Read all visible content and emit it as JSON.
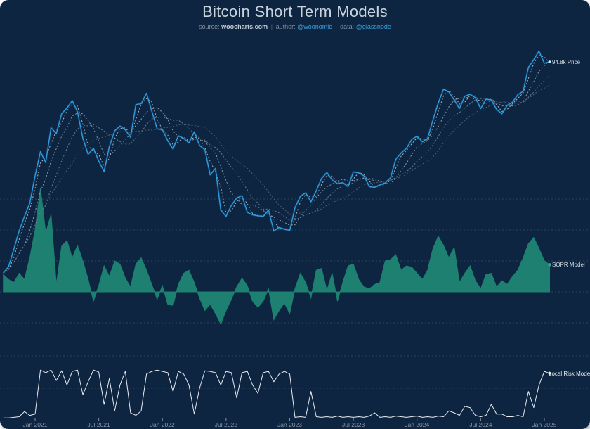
{
  "header": {
    "title": "Bitcoin Short Term Models",
    "subtitle": {
      "source_label": "source:",
      "source_value": "woocharts.com",
      "divider": "|",
      "author_label": "author:",
      "author_value": "@woonomic",
      "data_label": "data:",
      "data_value": "@glassnode"
    }
  },
  "series_labels": {
    "price": "94.8k Price",
    "sopr": "SOPR Model",
    "risk": "Local Risk Model"
  },
  "colors": {
    "background": "#0d2541",
    "price_line": "#30a0e2",
    "price_glow": "#1e6da6",
    "ma_lines": [
      "#e4eaf0",
      "#b9c3cd",
      "#8e9aa8",
      "#66758a"
    ],
    "sopr_area": "#1d8070",
    "sopr_dot": "#2fae8e",
    "risk_line": "#e9edf1",
    "gridline": "rgba(255,255,255,0.18)",
    "axis_text": "#8b98a7",
    "link": "#3aa0da"
  },
  "chart_data": {
    "type": "line",
    "title": "Bitcoin Short Term Models",
    "x_axis": {
      "tick_labels": [
        "Jan 2021",
        "Jul 2021",
        "Jan 2022",
        "Jul 2022",
        "Jan 2023",
        "Jul 2023",
        "Jan 2024",
        "Jul 2024",
        "Jan 2025"
      ],
      "tick_months": [
        0,
        6,
        12,
        18,
        24,
        30,
        36,
        42,
        48
      ]
    },
    "t_start": -3,
    "t_step": 0.5,
    "panels": [
      {
        "name": "btc_price_usd_thousands",
        "type": "line",
        "scale": "log",
        "label": "94.8k Price",
        "last_value": 94.8,
        "ma_windows_samples": [
          2,
          5,
          9,
          14
        ],
        "values": [
          10.7,
          11.4,
          13.7,
          16.5,
          19.2,
          22.0,
          29.2,
          37.5,
          33.5,
          48.0,
          45.2,
          55.5,
          58.8,
          63.5,
          56.5,
          43.0,
          36.5,
          38.8,
          34.0,
          30.5,
          39.5,
          46.5,
          48.8,
          47.0,
          43.5,
          61.0,
          61.5,
          68.5,
          57.0,
          47.5,
          47.0,
          42.0,
          38.5,
          44.2,
          43.0,
          41.0,
          46.0,
          40.0,
          38.2,
          29.5,
          31.5,
          20.5,
          19.2,
          21.5,
          23.2,
          23.8,
          20.0,
          19.5,
          19.3,
          19.2,
          20.5,
          16.5,
          17.1,
          16.8,
          16.6,
          21.0,
          23.6,
          24.5,
          22.3,
          25.0,
          28.4,
          30.2,
          28.0,
          26.9,
          27.2,
          26.1,
          30.4,
          30.1,
          29.2,
          26.1,
          25.9,
          26.6,
          27.1,
          28.6,
          34.6,
          37.0,
          38.8,
          42.5,
          44.0,
          41.5,
          43.0,
          52.0,
          62.0,
          71.5,
          69.5,
          64.0,
          58.5,
          66.5,
          67.8,
          65.5,
          58.5,
          64.5,
          64.0,
          58.0,
          55.5,
          60.5,
          62.5,
          67.5,
          70.0,
          89.5,
          97.0,
          106.0,
          93.5,
          94.8
        ]
      },
      {
        "name": "sopr_model",
        "type": "area",
        "label": "SOPR Model",
        "baseline": 0,
        "gridline_values": [
          1.5,
          1.0,
          0.5,
          0.0,
          -0.5
        ],
        "last_value": 0.44,
        "values": [
          0.28,
          0.2,
          0.15,
          0.3,
          0.2,
          0.55,
          1.0,
          1.68,
          0.95,
          1.25,
          0.12,
          0.74,
          0.83,
          0.55,
          0.75,
          0.5,
          0.2,
          -0.15,
          0.1,
          0.42,
          0.25,
          0.5,
          0.45,
          0.22,
          0.08,
          0.45,
          0.55,
          0.35,
          0.12,
          -0.12,
          0.1,
          -0.2,
          -0.22,
          0.12,
          0.3,
          0.35,
          0.15,
          -0.1,
          -0.3,
          -0.2,
          -0.35,
          -0.52,
          -0.3,
          -0.12,
          0.08,
          0.22,
          0.1,
          -0.15,
          -0.25,
          -0.15,
          0.05,
          -0.45,
          -0.3,
          -0.18,
          -0.35,
          0.05,
          0.3,
          0.15,
          -0.1,
          0.35,
          0.38,
          0.02,
          0.3,
          -0.15,
          0.15,
          0.42,
          0.45,
          0.2,
          0.08,
          0.05,
          0.12,
          0.15,
          0.5,
          0.52,
          0.6,
          0.35,
          0.42,
          0.4,
          0.3,
          0.2,
          0.35,
          0.7,
          0.9,
          0.75,
          0.55,
          0.72,
          0.15,
          0.3,
          0.42,
          0.18,
          0.05,
          0.28,
          0.3,
          0.08,
          0.18,
          0.12,
          0.25,
          0.35,
          0.55,
          0.78,
          0.88,
          0.7,
          0.5,
          0.44
        ]
      },
      {
        "name": "local_risk_model",
        "type": "line",
        "label": "Local Risk Model",
        "range": [
          0,
          1
        ],
        "gridline_values": [
          1.0,
          0.5
        ],
        "last_value": 0.73,
        "values": [
          0.04,
          0.04,
          0.05,
          0.06,
          0.14,
          0.08,
          0.1,
          0.78,
          0.74,
          0.78,
          0.62,
          0.77,
          0.55,
          0.76,
          0.78,
          0.4,
          0.6,
          0.78,
          0.75,
          0.25,
          0.65,
          0.15,
          0.55,
          0.76,
          0.12,
          0.08,
          0.15,
          0.72,
          0.76,
          0.78,
          0.76,
          0.74,
          0.45,
          0.76,
          0.72,
          0.55,
          0.1,
          0.5,
          0.77,
          0.76,
          0.74,
          0.55,
          0.76,
          0.74,
          0.35,
          0.74,
          0.76,
          0.55,
          0.42,
          0.74,
          0.76,
          0.6,
          0.72,
          0.76,
          0.72,
          0.05,
          0.06,
          0.05,
          0.45,
          0.06,
          0.05,
          0.06,
          0.05,
          0.07,
          0.05,
          0.06,
          0.05,
          0.06,
          0.05,
          0.07,
          0.12,
          0.05,
          0.06,
          0.05,
          0.07,
          0.06,
          0.05,
          0.06,
          0.07,
          0.05,
          0.06,
          0.05,
          0.07,
          0.06,
          0.15,
          0.12,
          0.08,
          0.22,
          0.2,
          0.08,
          0.06,
          0.08,
          0.25,
          0.1,
          0.1,
          0.06,
          0.06,
          0.08,
          0.06,
          0.45,
          0.2,
          0.55,
          0.76,
          0.73
        ]
      }
    ]
  }
}
